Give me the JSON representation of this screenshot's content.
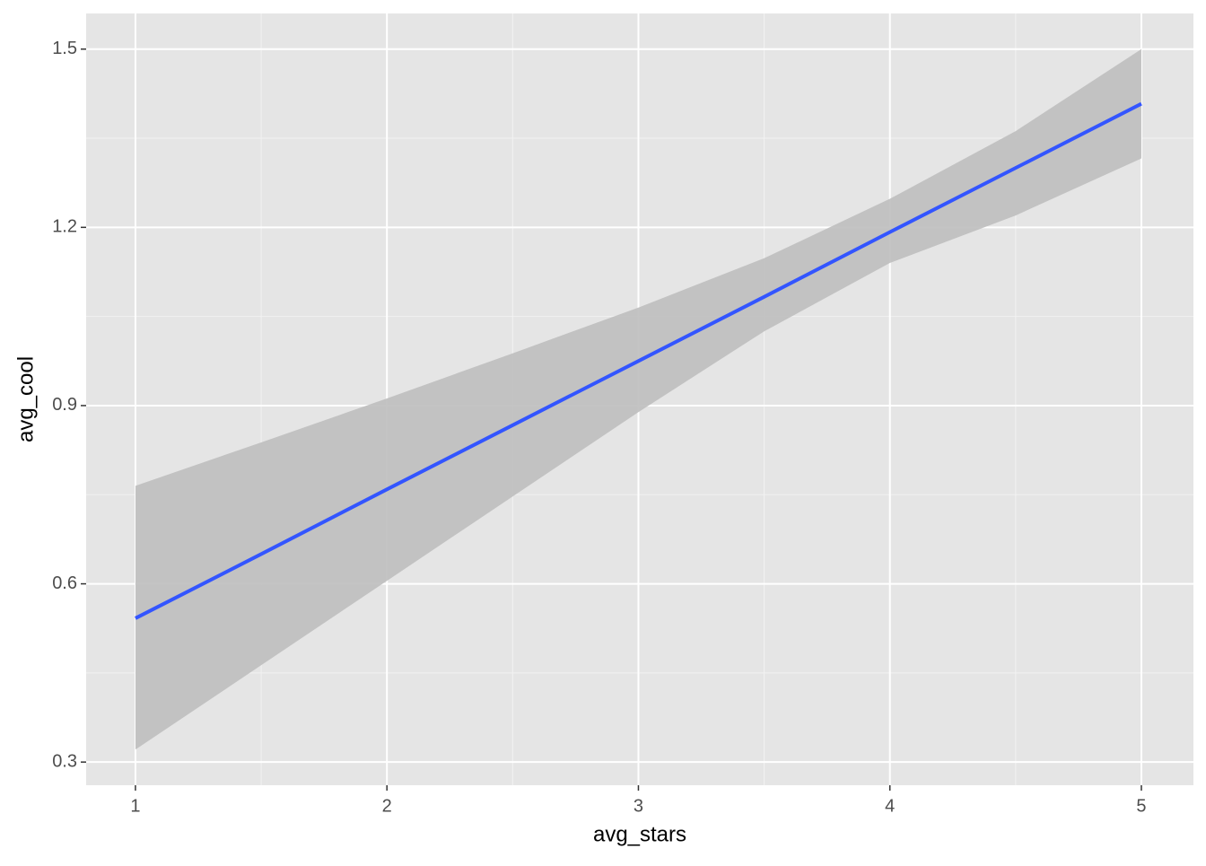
{
  "chart_data": {
    "type": "line",
    "x_label": "avg_stars",
    "y_label": "avg_cool",
    "x": [
      1,
      1.5,
      2,
      2.5,
      3,
      3.5,
      4,
      4.5,
      5
    ],
    "values": [
      0.542,
      0.65,
      0.759,
      0.867,
      0.975,
      1.083,
      1.192,
      1.3,
      1.408
    ],
    "lower": [
      0.321,
      0.463,
      0.605,
      0.747,
      0.889,
      1.025,
      1.14,
      1.22,
      1.316
    ],
    "upper": [
      0.765,
      0.838,
      0.912,
      0.988,
      1.065,
      1.148,
      1.248,
      1.362,
      1.5
    ],
    "color": "#3355ff",
    "band_color": "#bebebe",
    "xlim": [
      0.804,
      5.207
    ],
    "ylim": [
      0.261,
      1.56
    ],
    "xticks": [
      1,
      2,
      3,
      4,
      5
    ],
    "yticks": [
      {
        "value": 0.3,
        "label": "0.3"
      },
      {
        "value": 0.6,
        "label": "0.6"
      },
      {
        "value": 0.9,
        "label": "0.9"
      },
      {
        "value": 1.2,
        "label": "1.2"
      },
      {
        "value": 1.5,
        "label": "1.5"
      }
    ],
    "xminor": [
      1.5,
      2.5,
      3.5,
      4.5
    ],
    "yminor": [
      0.45,
      0.75,
      1.05,
      1.35
    ],
    "grid": true
  }
}
